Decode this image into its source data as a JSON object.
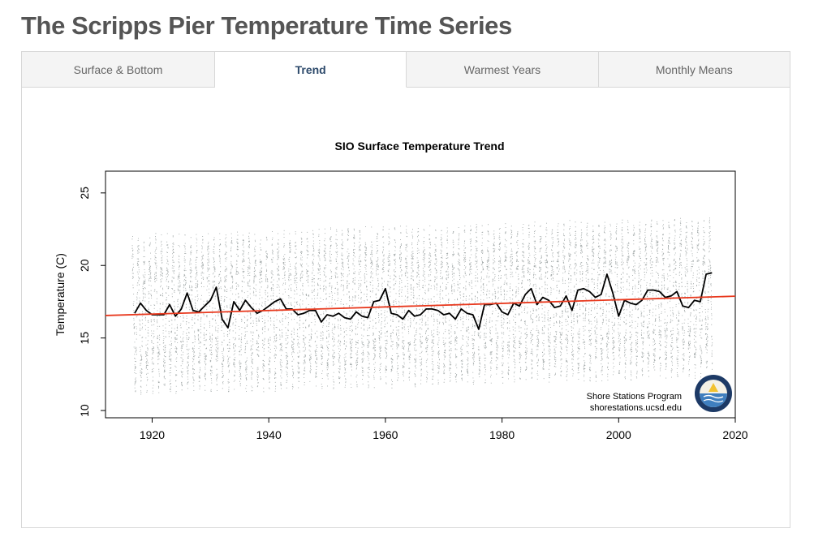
{
  "page": {
    "title": "The Scripps Pier Temperature Time Series"
  },
  "tabs": [
    {
      "label": "Surface & Bottom",
      "active": false
    },
    {
      "label": "Trend",
      "active": true
    },
    {
      "label": "Warmest Years",
      "active": false
    },
    {
      "label": "Monthly Means",
      "active": false
    }
  ],
  "credit": {
    "line1": "Shore Stations Program",
    "line2": "shorestations.ucsd.edu",
    "logo_icon": "shore-stations-seal-icon"
  },
  "colors": {
    "title": "#555555",
    "active_tab": "#2d4a6b",
    "daily_points": "#8c9494",
    "annual_mean": "#000000",
    "trend_line": "#e8391e"
  },
  "chart_data": {
    "type": "line",
    "title": "SIO Surface Temperature Trend",
    "xlabel": "",
    "ylabel": "Temperature (C)",
    "xlim": [
      1912,
      2020
    ],
    "ylim": [
      9.5,
      26.5
    ],
    "x_ticks": [
      1920,
      1940,
      1960,
      1980,
      2000,
      2020
    ],
    "y_ticks": [
      10,
      15,
      20,
      25
    ],
    "grid": false,
    "series": [
      {
        "name": "Daily observations",
        "style": "scatter",
        "description_range": {
          "x": [
            1916.5,
            2016
          ],
          "seasonal_amplitude": 4,
          "min": 10.2,
          "max": 25.8
        }
      },
      {
        "name": "Annual mean",
        "style": "line",
        "x": [
          1917,
          1918,
          1919,
          1920,
          1921,
          1922,
          1923,
          1924,
          1925,
          1926,
          1927,
          1928,
          1929,
          1930,
          1931,
          1932,
          1933,
          1934,
          1935,
          1936,
          1937,
          1938,
          1939,
          1940,
          1941,
          1942,
          1943,
          1944,
          1945,
          1946,
          1947,
          1948,
          1949,
          1950,
          1951,
          1952,
          1953,
          1954,
          1955,
          1956,
          1957,
          1958,
          1959,
          1960,
          1961,
          1962,
          1963,
          1964,
          1965,
          1966,
          1967,
          1968,
          1969,
          1970,
          1971,
          1972,
          1973,
          1974,
          1975,
          1976,
          1977,
          1978,
          1979,
          1980,
          1981,
          1982,
          1983,
          1984,
          1985,
          1986,
          1987,
          1988,
          1989,
          1990,
          1991,
          1992,
          1993,
          1994,
          1995,
          1996,
          1997,
          1998,
          1999,
          2000,
          2001,
          2002,
          2003,
          2004,
          2005,
          2006,
          2007,
          2008,
          2009,
          2010,
          2011,
          2012,
          2013,
          2014,
          2015,
          2016
        ],
        "values": [
          16.7,
          17.4,
          16.9,
          16.6,
          16.6,
          16.6,
          17.3,
          16.5,
          17.0,
          18.1,
          16.9,
          16.8,
          17.2,
          17.6,
          18.5,
          16.3,
          15.7,
          17.5,
          16.9,
          17.6,
          17.1,
          16.7,
          16.9,
          17.2,
          17.5,
          17.7,
          17.0,
          17.0,
          16.6,
          16.7,
          16.9,
          16.9,
          16.1,
          16.6,
          16.5,
          16.7,
          16.4,
          16.3,
          16.8,
          16.5,
          16.4,
          17.5,
          17.6,
          18.4,
          16.7,
          16.6,
          16.3,
          16.9,
          16.5,
          16.6,
          17.0,
          17.0,
          16.9,
          16.6,
          16.7,
          16.3,
          17.0,
          16.7,
          16.6,
          15.6,
          17.3,
          17.3,
          17.4,
          16.8,
          16.6,
          17.4,
          17.2,
          18.0,
          18.4,
          17.3,
          17.8,
          17.6,
          17.1,
          17.2,
          17.9,
          16.9,
          18.3,
          18.4,
          18.2,
          17.8,
          18.0,
          19.4,
          18.1,
          16.5,
          17.6,
          17.4,
          17.3,
          17.6,
          18.3,
          18.3,
          18.2,
          17.8,
          17.9,
          18.2,
          17.2,
          17.1,
          17.6,
          17.5,
          19.4,
          19.5
        ]
      },
      {
        "name": "Linear trend",
        "style": "line",
        "x": [
          1912,
          2020
        ],
        "values": [
          16.55,
          17.88
        ]
      }
    ]
  }
}
